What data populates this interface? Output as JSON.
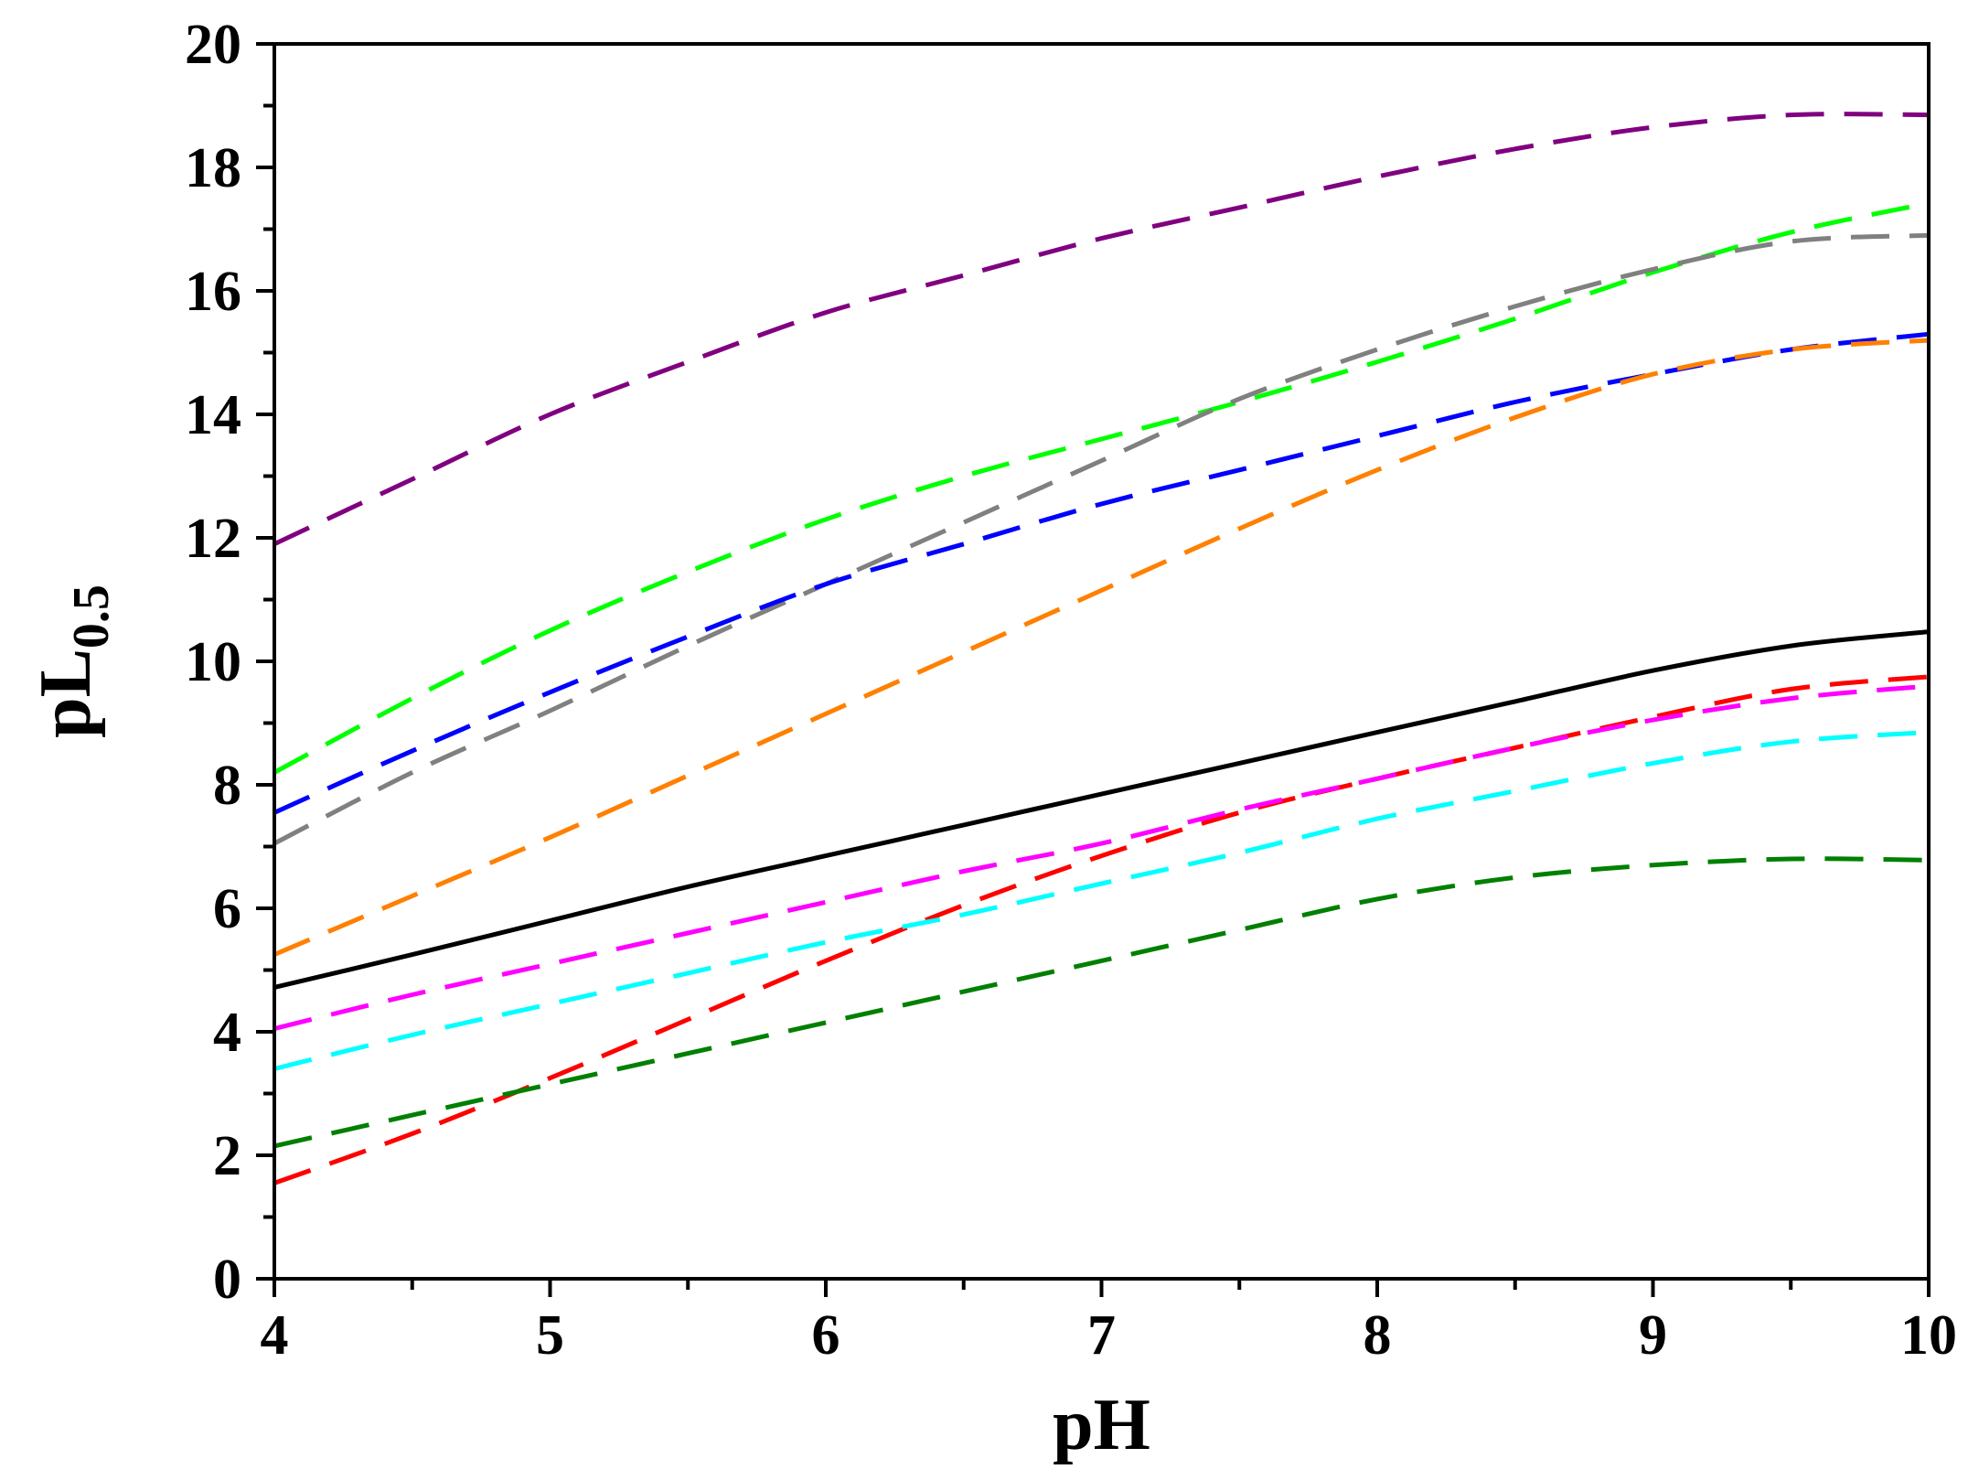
{
  "chart_data": {
    "type": "line",
    "xlabel": "pH",
    "ylabel": {
      "main": "pL",
      "subscript": "0.5"
    },
    "xlim": [
      4,
      10
    ],
    "ylim": [
      0,
      20
    ],
    "x_ticks": [
      "4",
      "5",
      "6",
      "7",
      "8",
      "9",
      "10"
    ],
    "y_ticks": [
      "0",
      "2",
      "4",
      "6",
      "8",
      "10",
      "12",
      "14",
      "16",
      "18",
      "20"
    ],
    "grid": false,
    "x": [
      4,
      4.5,
      5,
      5.5,
      6,
      6.5,
      7,
      7.5,
      8,
      8.5,
      9,
      9.5,
      10
    ],
    "series": [
      {
        "name": "black-solid",
        "color": "#000000",
        "style": "solid",
        "values": [
          4.72,
          5.25,
          5.8,
          6.35,
          6.85,
          7.35,
          7.85,
          8.35,
          8.85,
          9.35,
          9.85,
          10.25,
          10.48
        ]
      },
      {
        "name": "purple",
        "color": "#800080",
        "style": "dashed",
        "values": [
          11.9,
          12.95,
          14.0,
          14.85,
          15.65,
          16.25,
          16.85,
          17.35,
          17.85,
          18.3,
          18.65,
          18.85,
          18.85
        ]
      },
      {
        "name": "green",
        "color": "#00ff00",
        "style": "dashed",
        "values": [
          8.2,
          9.4,
          10.5,
          11.45,
          12.3,
          13.0,
          13.6,
          14.2,
          14.85,
          15.55,
          16.3,
          16.95,
          17.42
        ]
      },
      {
        "name": "gray",
        "color": "#808080",
        "style": "dashed",
        "values": [
          7.05,
          8.2,
          9.2,
          10.25,
          11.25,
          12.25,
          13.25,
          14.25,
          15.05,
          15.75,
          16.35,
          16.8,
          16.9
        ]
      },
      {
        "name": "blue",
        "color": "#0000ff",
        "style": "dashed",
        "values": [
          7.55,
          8.55,
          9.5,
          10.4,
          11.25,
          11.9,
          12.55,
          13.1,
          13.65,
          14.2,
          14.65,
          15.05,
          15.3
        ]
      },
      {
        "name": "orange",
        "color": "#ff8000",
        "style": "dashed",
        "values": [
          5.25,
          6.2,
          7.15,
          8.15,
          9.15,
          10.15,
          11.15,
          12.15,
          13.1,
          13.95,
          14.65,
          15.05,
          15.2
        ]
      },
      {
        "name": "red",
        "color": "#ff0000",
        "style": "dashed",
        "values": [
          1.55,
          2.35,
          3.25,
          4.2,
          5.15,
          6.05,
          6.85,
          7.55,
          8.1,
          8.6,
          9.1,
          9.55,
          9.75
        ]
      },
      {
        "name": "magenta",
        "color": "#ff00ff",
        "style": "dashed",
        "values": [
          4.05,
          4.6,
          5.1,
          5.6,
          6.1,
          6.6,
          7.05,
          7.6,
          8.1,
          8.6,
          9.05,
          9.4,
          9.6
        ]
      },
      {
        "name": "cyan",
        "color": "#00ffff",
        "style": "dashed",
        "values": [
          3.4,
          3.95,
          4.45,
          4.95,
          5.45,
          5.9,
          6.4,
          6.9,
          7.45,
          7.9,
          8.35,
          8.7,
          8.85
        ]
      },
      {
        "name": "dark-green",
        "color": "#008000",
        "style": "dashed",
        "values": [
          2.15,
          2.65,
          3.15,
          3.65,
          4.15,
          4.65,
          5.15,
          5.65,
          6.15,
          6.5,
          6.7,
          6.8,
          6.78
        ]
      }
    ]
  }
}
